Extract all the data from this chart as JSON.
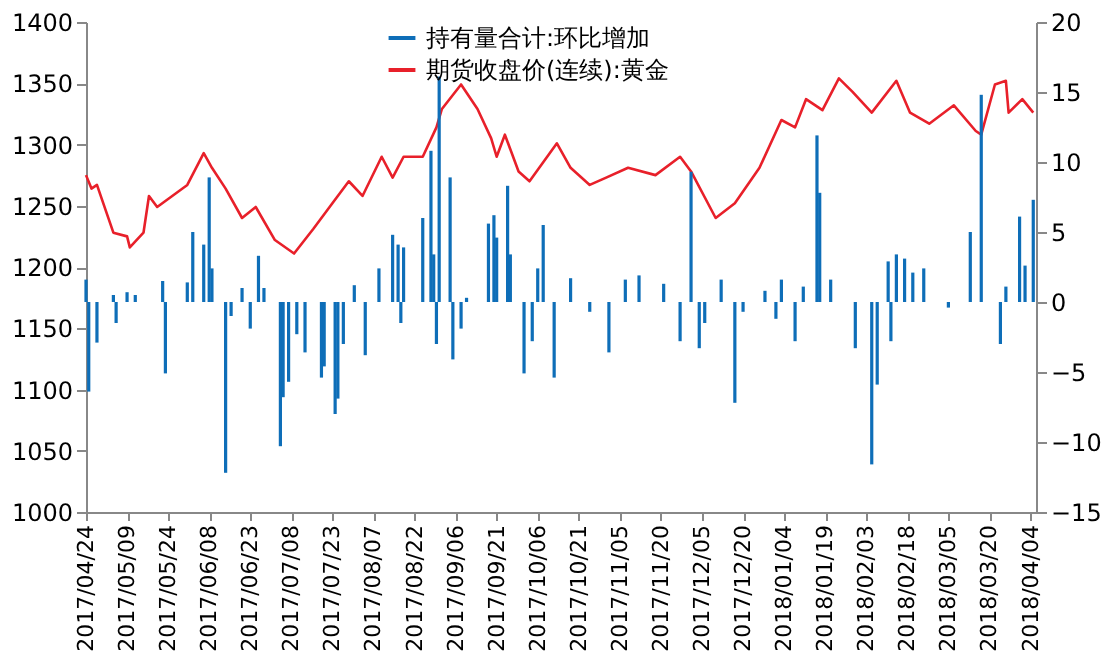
{
  "chart_data": {
    "type": "bar",
    "xlim": [
      "2017-04-24",
      "2018-04-06"
    ],
    "xticks": [
      {
        "value": "2017-04-24",
        "label": "2017/04/24"
      },
      {
        "value": "2017-05-09",
        "label": "2017/05/09"
      },
      {
        "value": "2017-05-24",
        "label": "2017/05/24"
      },
      {
        "value": "2017-06-08",
        "label": "2017/06/08"
      },
      {
        "value": "2017-06-23",
        "label": "2017/06/23"
      },
      {
        "value": "2017-07-08",
        "label": "2017/07/08"
      },
      {
        "value": "2017-07-23",
        "label": "2017/07/23"
      },
      {
        "value": "2017-08-07",
        "label": "2017/08/07"
      },
      {
        "value": "2017-08-22",
        "label": "2017/08/22"
      },
      {
        "value": "2017-09-06",
        "label": "2017/09/06"
      },
      {
        "value": "2017-09-21",
        "label": "2017/09/21"
      },
      {
        "value": "2017-10-06",
        "label": "2017/10/06"
      },
      {
        "value": "2017-10-21",
        "label": "2017/10/21"
      },
      {
        "value": "2017-11-05",
        "label": "2017/11/05"
      },
      {
        "value": "2017-11-20",
        "label": "2017/11/20"
      },
      {
        "value": "2017-12-05",
        "label": "2017/12/05"
      },
      {
        "value": "2017-12-20",
        "label": "2017/12/20"
      },
      {
        "value": "2018-01-04",
        "label": "2018/01/04"
      },
      {
        "value": "2018-01-19",
        "label": "2018/01/19"
      },
      {
        "value": "2018-02-03",
        "label": "2018/02/03"
      },
      {
        "value": "2018-02-18",
        "label": "2018/02/18"
      },
      {
        "value": "2018-03-05",
        "label": "2018/03/05"
      },
      {
        "value": "2018-03-20",
        "label": "2018/03/20"
      },
      {
        "value": "2018-04-04",
        "label": "2018/04/04"
      }
    ],
    "ylim": [
      1000,
      1400
    ],
    "yticks": [
      1000,
      1050,
      1100,
      1150,
      1200,
      1250,
      1300,
      1350,
      1400
    ],
    "y2lim": [
      -15,
      20
    ],
    "y2ticks": [
      -15,
      -10,
      -5,
      0,
      5,
      10,
      15,
      20
    ],
    "grid": false,
    "legend": "top",
    "series": [
      {
        "name": "持有量合计:环比增加",
        "color": "#0e6eb8",
        "axis": "y2",
        "x": [
          "2017-04-24",
          "2017-04-25",
          "2017-04-28",
          "2017-05-04",
          "2017-05-05",
          "2017-05-09",
          "2017-05-12",
          "2017-05-22",
          "2017-05-23",
          "2017-05-31",
          "2017-06-02",
          "2017-06-06",
          "2017-06-08",
          "2017-06-09",
          "2017-06-14",
          "2017-06-16",
          "2017-06-20",
          "2017-06-23",
          "2017-06-26",
          "2017-06-28",
          "2017-07-04",
          "2017-07-05",
          "2017-07-07",
          "2017-07-10",
          "2017-07-13",
          "2017-07-19",
          "2017-07-20",
          "2017-07-24",
          "2017-07-25",
          "2017-07-27",
          "2017-07-31",
          "2017-08-04",
          "2017-08-09",
          "2017-08-14",
          "2017-08-16",
          "2017-08-17",
          "2017-08-18",
          "2017-08-25",
          "2017-08-28",
          "2017-08-29",
          "2017-08-30",
          "2017-08-31",
          "2017-09-04",
          "2017-09-05",
          "2017-09-08",
          "2017-09-10",
          "2017-09-18",
          "2017-09-20",
          "2017-09-21",
          "2017-09-25",
          "2017-09-26",
          "2017-10-01",
          "2017-10-04",
          "2017-10-06",
          "2017-10-08",
          "2017-10-12",
          "2017-10-18",
          "2017-10-25",
          "2017-11-01",
          "2017-11-07",
          "2017-11-12",
          "2017-11-21",
          "2017-11-27",
          "2017-12-01",
          "2017-12-04",
          "2017-12-06",
          "2017-12-12",
          "2017-12-17",
          "2017-12-20",
          "2017-12-28",
          "2018-01-01",
          "2018-01-03",
          "2018-01-08",
          "2018-01-11",
          "2018-01-16",
          "2018-01-17",
          "2018-01-21",
          "2018-01-30",
          "2018-02-05",
          "2018-02-07",
          "2018-02-11",
          "2018-02-12",
          "2018-02-14",
          "2018-02-17",
          "2018-02-20",
          "2018-02-24",
          "2018-03-05",
          "2018-03-13",
          "2018-03-17",
          "2018-03-24",
          "2018-03-26",
          "2018-03-31",
          "2018-04-02",
          "2018-04-05"
        ],
        "values": [
          1.6,
          -6.4,
          -2.9,
          0.5,
          -1.5,
          0.7,
          0.5,
          1.5,
          -5.1,
          1.4,
          5.0,
          4.1,
          8.9,
          2.4,
          -12.2,
          -1,
          1,
          -1.9,
          3.3,
          1,
          -10.3,
          -6.8,
          -5.7,
          -2.3,
          -3.6,
          -5.4,
          -4.6,
          -8,
          -6.9,
          -3,
          1.2,
          -3.8,
          2.4,
          4.8,
          4.1,
          -1.5,
          3.9,
          6,
          10.8,
          3.4,
          -3,
          16.1,
          8.9,
          -4.1,
          -1.9,
          0.3,
          5.6,
          6.2,
          4.6,
          8.3,
          3.4,
          -5.1,
          -2.8,
          2.4,
          5.5,
          -5.4,
          1.7,
          -0.7,
          -3.6,
          1.6,
          1.9,
          1.3,
          -2.8,
          9.3,
          -3.3,
          -1.5,
          1.6,
          -7.2,
          -0.7,
          0.8,
          -1.2,
          1.6,
          -2.8,
          1.1,
          11.9,
          7.8,
          1.6,
          -3.3,
          -11.6,
          -5.9,
          2.9,
          -2.8,
          3.4,
          3.1,
          2.1,
          2.4,
          -0.4,
          5.0,
          14.8,
          -3,
          1.1,
          6.1,
          2.6,
          7.3
        ]
      },
      {
        "name": "期货收盘价(连续):黄金",
        "color": "#e8202a",
        "type": "line",
        "x": [
          "2017-04-24",
          "2017-04-26",
          "2017-04-28",
          "2017-05-04",
          "2017-05-09",
          "2017-05-10",
          "2017-05-15",
          "2017-05-17",
          "2017-05-20",
          "2017-05-31",
          "2017-06-06",
          "2017-06-09",
          "2017-06-14",
          "2017-06-20",
          "2017-06-25",
          "2017-07-02",
          "2017-07-09",
          "2017-07-16",
          "2017-07-23",
          "2017-07-29",
          "2017-08-03",
          "2017-08-10",
          "2017-08-14",
          "2017-08-18",
          "2017-08-25",
          "2017-08-30",
          "2017-09-01",
          "2017-09-08",
          "2017-09-14",
          "2017-09-19",
          "2017-09-21",
          "2017-09-24",
          "2017-09-29",
          "2017-10-03",
          "2017-10-13",
          "2017-10-18",
          "2017-10-25",
          "2017-10-31",
          "2017-11-08",
          "2017-11-18",
          "2017-11-27",
          "2017-12-01",
          "2017-12-10",
          "2017-12-17",
          "2017-12-26",
          "2018-01-03",
          "2018-01-08",
          "2018-01-12",
          "2018-01-18",
          "2018-01-24",
          "2018-01-29",
          "2018-02-05",
          "2018-02-14",
          "2018-02-19",
          "2018-02-26",
          "2018-03-07",
          "2018-03-15",
          "2018-03-17",
          "2018-03-22",
          "2018-03-26",
          "2018-03-27",
          "2018-04-01",
          "2018-04-05"
        ],
        "values": [
          1275,
          1264,
          1267,
          1228,
          1225,
          1216,
          1228,
          1258,
          1249,
          1267,
          1293,
          1281,
          1264,
          1240,
          1249,
          1222,
          1211,
          1231,
          1252,
          1270,
          1258,
          1290,
          1273,
          1290,
          1290,
          1314,
          1329,
          1349,
          1329,
          1305,
          1290,
          1308,
          1278,
          1270,
          1301,
          1281,
          1267,
          1273,
          1281,
          1275,
          1290,
          1278,
          1240,
          1252,
          1281,
          1320,
          1314,
          1337,
          1328,
          1354,
          1343,
          1326,
          1352,
          1326,
          1317,
          1332,
          1311,
          1308,
          1349,
          1352,
          1326,
          1337,
          1326
        ]
      }
    ]
  }
}
